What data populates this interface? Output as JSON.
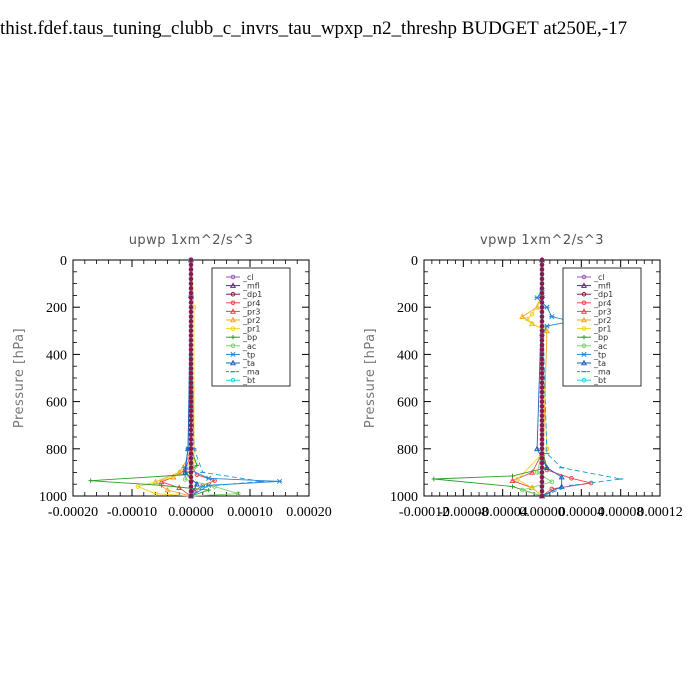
{
  "page": {
    "title": "thist.fdef.taus_tuning_clubb_c_invrs_tau_wpxp_n2_threshp  BUDGET at250E,-17"
  },
  "legend": [
    {
      "name": "_cl",
      "color": "#9b59b6",
      "marker": "circle"
    },
    {
      "name": "_mfl",
      "color": "#7b1f6b",
      "marker": "triangle"
    },
    {
      "name": "_dp1",
      "color": "#8b1a4a",
      "marker": "circle"
    },
    {
      "name": "_pr4",
      "color": "#e8474b",
      "marker": "circle"
    },
    {
      "name": "_pr3",
      "color": "#e8474b",
      "marker": "triangle"
    },
    {
      "name": "_pr2",
      "color": "#f5a623",
      "marker": "triangle"
    },
    {
      "name": "_pr1",
      "color": "#f2d21b",
      "marker": "circle"
    },
    {
      "name": "_bp",
      "color": "#2ca02c",
      "marker": "plus"
    },
    {
      "name": "_ac",
      "color": "#7bd36a",
      "marker": "circle"
    },
    {
      "name": "_tp",
      "color": "#2a87d6",
      "marker": "star"
    },
    {
      "name": "_ta",
      "color": "#1f5fbf",
      "marker": "triangle"
    },
    {
      "name": "_ma",
      "color": "#1a9ad6",
      "marker": "dash"
    },
    {
      "name": "_bt",
      "color": "#22d3e8",
      "marker": "circle"
    }
  ],
  "chart_data": [
    {
      "type": "line",
      "title": "upwp   1xm^2/s^3",
      "xlabel": "",
      "ylabel": "Pressure [hPa]",
      "xlim": [
        -0.0002,
        0.0002
      ],
      "ylim": [
        1000,
        0
      ],
      "x_ticks": [
        -0.0002,
        -0.0001,
        0.0,
        0.0001,
        0.0002
      ],
      "x_tick_labels": [
        "-0.00020",
        "-0.00010",
        "0.00000",
        "0.00010",
        "0.00020"
      ],
      "y_ticks": [
        0,
        200,
        400,
        600,
        800,
        1000
      ],
      "y_tick_labels": [
        "0",
        "200",
        "400",
        "600",
        "800",
        "1000"
      ],
      "legend_position": "top-right",
      "series": [
        {
          "name": "_cl",
          "x": [
            0,
            0
          ],
          "y": [
            0,
            1000
          ]
        },
        {
          "name": "_mfl",
          "x": [
            0,
            0
          ],
          "y": [
            0,
            1000
          ]
        },
        {
          "name": "_dp1",
          "x": [
            0,
            0
          ],
          "y": [
            0,
            1000
          ]
        },
        {
          "name": "_pr4",
          "x": [
            0,
            2e-06,
            1e-05,
            4e-05,
            2e-05,
            5e-06,
            0
          ],
          "y": [
            820,
            880,
            910,
            935,
            955,
            980,
            1000
          ]
        },
        {
          "name": "_pr3",
          "x": [
            0,
            -1e-05,
            -3e-05,
            -5e-05,
            -2e-05,
            0
          ],
          "y": [
            820,
            890,
            920,
            940,
            965,
            1000
          ]
        },
        {
          "name": "_pr2",
          "x": [
            0,
            5e-06,
            -2e-05,
            -6e-05,
            -4e-05,
            0
          ],
          "y": [
            150,
            800,
            900,
            940,
            975,
            1000
          ]
        },
        {
          "name": "_pr1",
          "x": [
            0,
            5e-06,
            5e-06,
            -3e-05,
            -9e-05,
            -6e-05,
            0
          ],
          "y": [
            0,
            200,
            850,
            920,
            960,
            990,
            1000
          ]
        },
        {
          "name": "_bp",
          "x": [
            0,
            1e-05,
            -1e-05,
            -0.00017,
            -5e-05,
            3e-05,
            0
          ],
          "y": [
            800,
            870,
            910,
            935,
            955,
            975,
            1000
          ]
        },
        {
          "name": "_ac",
          "x": [
            0,
            5e-06,
            -1e-05,
            4e-05,
            8e-05,
            0
          ],
          "y": [
            820,
            880,
            930,
            960,
            990,
            1000
          ]
        },
        {
          "name": "_tp",
          "x": [
            0,
            -5e-06,
            -1e-05,
            3e-05,
            0.00015,
            3e-05,
            0
          ],
          "y": [
            0,
            800,
            880,
            925,
            938,
            955,
            1000
          ]
        },
        {
          "name": "_ta",
          "x": [
            0,
            -5e-06,
            -1e-05,
            1e-05,
            0
          ],
          "y": [
            150,
            800,
            900,
            950,
            1000
          ]
        },
        {
          "name": "_ma",
          "x": [
            0,
            5e-06,
            2e-05,
            0.00012,
            2e-05,
            0
          ],
          "y": [
            150,
            800,
            900,
            938,
            960,
            1000
          ]
        },
        {
          "name": "_bt",
          "x": [
            0,
            0
          ],
          "y": [
            0,
            1000
          ]
        }
      ]
    },
    {
      "type": "line",
      "title": "vpwp   1xm^2/s^3",
      "xlabel": "",
      "ylabel": "Pressure [hPa]",
      "xlim": [
        -0.00012,
        0.00012
      ],
      "ylim": [
        1000,
        0
      ],
      "x_ticks": [
        -0.00012,
        -8e-05,
        -4e-05,
        0.0,
        4e-05,
        8e-05,
        0.00012
      ],
      "x_tick_labels": [
        "-0.00012",
        "-0.00008",
        "-0.00004",
        "0.00000",
        "0.00004",
        "0.00008",
        "0.00012"
      ],
      "y_ticks": [
        0,
        200,
        400,
        600,
        800,
        1000
      ],
      "y_tick_labels": [
        "0",
        "200",
        "400",
        "600",
        "800",
        "1000"
      ],
      "legend_position": "top-right",
      "series": [
        {
          "name": "_cl",
          "x": [
            0,
            0
          ],
          "y": [
            0,
            1000
          ]
        },
        {
          "name": "_mfl",
          "x": [
            0,
            0
          ],
          "y": [
            0,
            1000
          ]
        },
        {
          "name": "_dp1",
          "x": [
            0,
            0
          ],
          "y": [
            0,
            1000
          ]
        },
        {
          "name": "_pr4",
          "x": [
            0,
            5e-06,
            3e-05,
            5e-05,
            1e-05,
            0
          ],
          "y": [
            820,
            890,
            925,
            945,
            970,
            1000
          ]
        },
        {
          "name": "_pr3",
          "x": [
            0,
            -1e-05,
            -3e-05,
            -1e-05,
            0
          ],
          "y": [
            820,
            900,
            935,
            965,
            1000
          ]
        },
        {
          "name": "_pr2",
          "x": [
            0,
            -5e-06,
            -2e-05,
            -1e-05,
            5e-06,
            0
          ],
          "y": [
            150,
            200,
            240,
            270,
            300,
            1000
          ]
        },
        {
          "name": "_pr1",
          "x": [
            0,
            -1e-05,
            -1.5e-05,
            -1e-05,
            0,
            5e-06,
            -2.5e-05,
            -1e-05,
            0
          ],
          "y": [
            150,
            230,
            250,
            270,
            290,
            800,
            930,
            965,
            1000
          ]
        },
        {
          "name": "_bp",
          "x": [
            0,
            5e-06,
            -3e-05,
            -0.00011,
            -3e-05,
            0
          ],
          "y": [
            800,
            880,
            915,
            928,
            960,
            1000
          ]
        },
        {
          "name": "_ac",
          "x": [
            0,
            -5e-06,
            1e-05,
            -2e-05,
            0
          ],
          "y": [
            820,
            900,
            940,
            975,
            1000
          ]
        },
        {
          "name": "_tp",
          "x": [
            0,
            -5e-06,
            5e-06,
            1e-05,
            3e-05,
            5e-06,
            0
          ],
          "y": [
            130,
            160,
            200,
            240,
            260,
            280,
            320
          ]
        },
        {
          "name": "_ta",
          "x": [
            0,
            -5e-06,
            5e-06,
            2e-05,
            2e-05,
            0
          ],
          "y": [
            150,
            800,
            880,
            920,
            960,
            1000
          ]
        },
        {
          "name": "_ma",
          "x": [
            0,
            5e-06,
            2e-05,
            8e-05,
            3e-05,
            0
          ],
          "y": [
            150,
            820,
            880,
            928,
            955,
            1000
          ]
        },
        {
          "name": "_bt",
          "x": [
            0,
            0
          ],
          "y": [
            0,
            1000
          ]
        }
      ]
    }
  ]
}
